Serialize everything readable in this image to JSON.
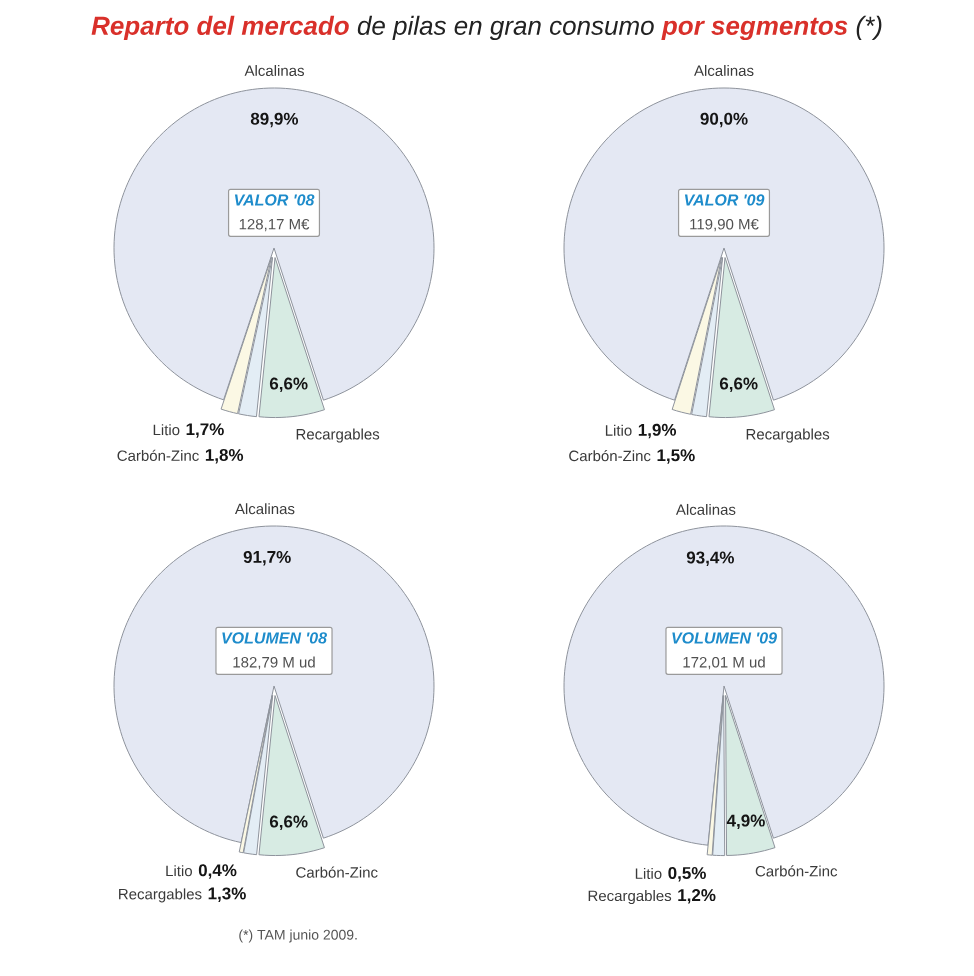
{
  "chart_data": [
    {
      "type": "pie",
      "title": "**Reparto del mercado** de pilas en gran consumo **por segmentos** (*)",
      "subtitle": "VALOR '08",
      "categories": [
        "Alcalinas",
        "Litio",
        "Carbón-Zinc",
        "Recargables"
      ],
      "values": [
        89.9,
        1.7,
        1.8,
        6.6
      ],
      "value_labels": [
        "89,9%",
        "1,7%",
        "1,8%",
        "6,6%"
      ],
      "colors": [
        "#e4e8f3",
        "#fbf8e4",
        "#e3edf5",
        "#d7ebe3"
      ],
      "annotations": [
        "128,17 M€"
      ]
    },
    {
      "type": "pie",
      "subtitle": "VALOR '09",
      "categories": [
        "Alcalinas",
        "Litio",
        "Carbón-Zinc",
        "Recargables"
      ],
      "values": [
        90.0,
        1.9,
        1.5,
        6.6
      ],
      "value_labels": [
        "90,0%",
        "1,9%",
        "1,5%",
        "6,6%"
      ],
      "colors": [
        "#e4e8f3",
        "#fbf8e4",
        "#e3edf5",
        "#d7ebe3"
      ],
      "annotations": [
        "119,90 M€"
      ]
    },
    {
      "type": "pie",
      "subtitle": "VOLUMEN '08",
      "categories": [
        "Alcalinas",
        "Litio",
        "Recargables",
        "Carbón-Zinc"
      ],
      "values": [
        91.7,
        0.4,
        1.3,
        6.6
      ],
      "value_labels": [
        "91,7%",
        "0,4%",
        "1,3%",
        "6,6%"
      ],
      "colors": [
        "#e4e8f3",
        "#fbf8e4",
        "#e3edf5",
        "#d7ebe3"
      ],
      "annotations": [
        "182,79 M ud",
        "(*) TAM junio 2009."
      ]
    },
    {
      "type": "pie",
      "subtitle": "VOLUMEN '09",
      "categories": [
        "Alcalinas",
        "Litio",
        "Recargables",
        "Carbón-Zinc"
      ],
      "values": [
        93.4,
        0.5,
        1.2,
        4.9
      ],
      "value_labels": [
        "93,4%",
        "0,5%",
        "1,2%",
        "4,9%"
      ],
      "colors": [
        "#e4e8f3",
        "#fbf8e4",
        "#e3edf5",
        "#d7ebe3"
      ],
      "annotations": [
        "172,01 M ud"
      ]
    }
  ]
}
